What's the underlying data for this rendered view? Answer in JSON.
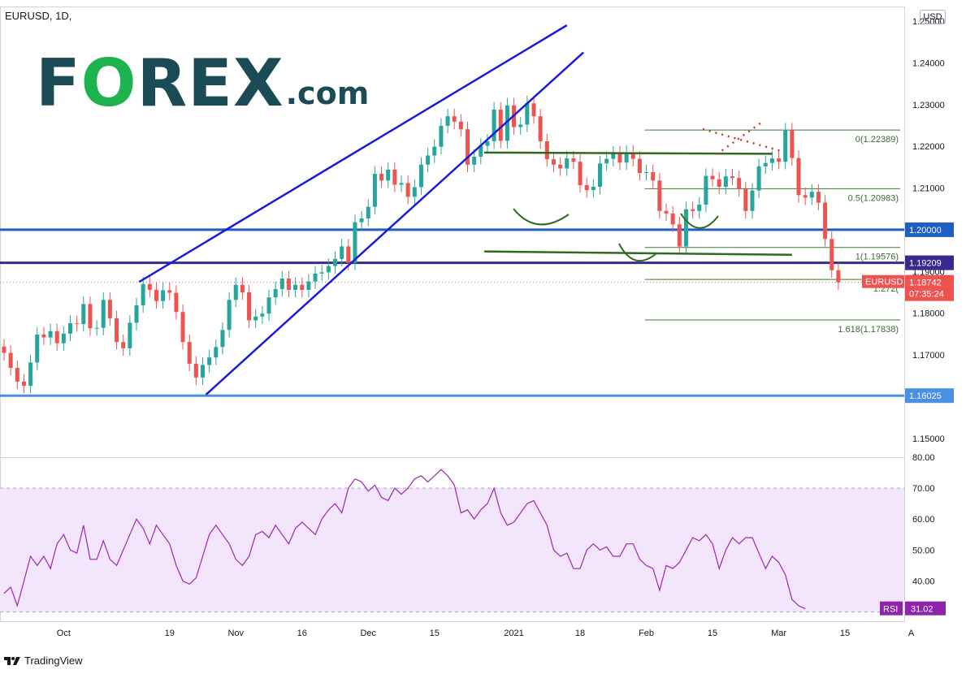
{
  "header": {
    "symbol": "EURUSD, 1D,",
    "currency": "USD"
  },
  "logo": {
    "text": "FOREX",
    "suffix": ".com",
    "colors": {
      "text": "#1b4b55",
      "accent": "#1db34f"
    }
  },
  "footer": {
    "brand": "TradingView"
  },
  "colors": {
    "up": "#26a69a",
    "down": "#ef5350",
    "rsi_line": "#9c27b0",
    "rsi_band": "#f3e5fb",
    "trendline": "#1a1add",
    "support": "#1f5fc1",
    "pattern": "#2e6b1f",
    "fib": "#3c7a34"
  },
  "chart_data": [
    {
      "type": "candlestick",
      "title": "EURUSD, 1D",
      "ylim": [
        1.1455,
        1.2535
      ],
      "yticks": [
        "1.25000",
        "1.24000",
        "1.23000",
        "1.22000",
        "1.21000",
        "1.20000",
        "1.19000",
        "1.18000",
        "1.17000",
        "1.16000",
        "1.15000"
      ],
      "xticks": [
        {
          "label": "Oct",
          "i": 9
        },
        {
          "label": "19",
          "i": 25
        },
        {
          "label": "Nov",
          "i": 35
        },
        {
          "label": "16",
          "i": 45
        },
        {
          "label": "Dec",
          "i": 55
        },
        {
          "label": "15",
          "i": 65
        },
        {
          "label": "2021",
          "i": 77
        },
        {
          "label": "18",
          "i": 87
        },
        {
          "label": "Feb",
          "i": 97
        },
        {
          "label": "15",
          "i": 107
        },
        {
          "label": "Mar",
          "i": 117
        },
        {
          "label": "15",
          "i": 127
        },
        {
          "label": "A",
          "i": 137
        }
      ],
      "closes": [
        1.1705,
        1.1669,
        1.1636,
        1.1626,
        1.1682,
        1.1749,
        1.1742,
        1.1757,
        1.1728,
        1.1751,
        1.1776,
        1.1774,
        1.1822,
        1.1764,
        1.1765,
        1.1832,
        1.1788,
        1.1731,
        1.1716,
        1.1777,
        1.1819,
        1.187,
        1.1856,
        1.1829,
        1.1855,
        1.1849,
        1.1803,
        1.1731,
        1.1679,
        1.1646,
        1.1676,
        1.1694,
        1.1719,
        1.176,
        1.1832,
        1.1868,
        1.185,
        1.1783,
        1.1792,
        1.1799,
        1.1838,
        1.1858,
        1.1883,
        1.1856,
        1.1868,
        1.1856,
        1.1876,
        1.1895,
        1.1898,
        1.1913,
        1.193,
        1.196,
        1.1921,
        1.2018,
        1.2027,
        1.2055,
        1.2134,
        1.2118,
        1.2144,
        1.2108,
        1.2112,
        1.2079,
        1.2102,
        1.2156,
        1.2178,
        1.2199,
        1.2249,
        1.2272,
        1.2259,
        1.2241,
        1.2156,
        1.2175,
        1.2201,
        1.2212,
        1.2288,
        1.2213,
        1.2298,
        1.2246,
        1.2252,
        1.2303,
        1.2272,
        1.2212,
        1.2169,
        1.2156,
        1.2147,
        1.2171,
        1.2163,
        1.2107,
        1.2095,
        1.2103,
        1.2159,
        1.217,
        1.2182,
        1.2161,
        1.2185,
        1.217,
        1.2136,
        1.2138,
        1.2118,
        1.2045,
        1.2039,
        1.2013,
        1.196,
        1.2049,
        1.2045,
        1.206,
        1.2129,
        1.2121,
        1.2103,
        1.2128,
        1.2124,
        1.2097,
        1.2045,
        1.2094,
        1.2152,
        1.216,
        1.2171,
        1.2163,
        1.2238,
        1.2172,
        1.2083,
        1.2077,
        1.2091,
        1.2065,
        1.1978,
        1.1903,
        1.1874
      ],
      "series": [
        {
          "name": "EURUSD",
          "last": "1.18742",
          "countdown": "07:35:24"
        }
      ],
      "levels": [
        "1.20000",
        "1.19209",
        "1.16025"
      ],
      "fibonacci": [
        {
          "label": "0(1.22389)",
          "value": 1.22389
        },
        {
          "label": "0.5(1.20983)",
          "value": 1.20983
        },
        {
          "label": "1(1.19576)",
          "value": 1.19576
        },
        {
          "label": "1.272(",
          "value": 1.1881
        },
        {
          "label": "1.618(1.17838)",
          "value": 1.17838
        }
      ]
    },
    {
      "type": "line",
      "title": "RSI",
      "ylim": [
        27,
        80
      ],
      "yticks": [
        "80.00",
        "70.00",
        "60.00",
        "50.00",
        "40.00"
      ],
      "band": [
        30,
        70
      ],
      "series": [
        {
          "name": "RSI",
          "last": "31.02",
          "values": [
            36,
            38,
            32,
            40,
            48,
            45,
            48,
            44,
            52,
            55,
            50,
            49,
            58,
            47,
            47,
            53,
            47,
            45,
            50,
            55,
            60,
            57,
            52,
            58,
            55,
            52,
            45,
            40,
            39,
            41,
            48,
            55,
            58,
            55,
            52,
            47,
            45,
            48,
            55,
            56,
            54,
            58,
            55,
            52,
            57,
            59,
            57,
            55,
            60,
            63,
            65,
            62,
            70,
            73,
            72,
            69,
            71,
            67,
            66,
            70,
            68,
            70,
            73,
            74,
            72,
            74,
            76,
            74,
            71,
            62,
            63,
            60,
            63,
            65,
            70,
            62,
            58,
            59,
            62,
            65,
            66,
            62,
            58,
            50,
            48,
            49,
            44,
            44,
            50,
            52,
            50,
            51,
            48,
            48,
            52,
            52,
            47,
            45,
            44,
            37,
            45,
            44,
            46,
            50,
            54,
            53,
            55,
            52,
            44,
            50,
            54,
            52,
            54,
            54,
            49,
            44,
            48,
            46,
            42,
            34,
            32,
            31.02
          ]
        }
      ]
    }
  ]
}
